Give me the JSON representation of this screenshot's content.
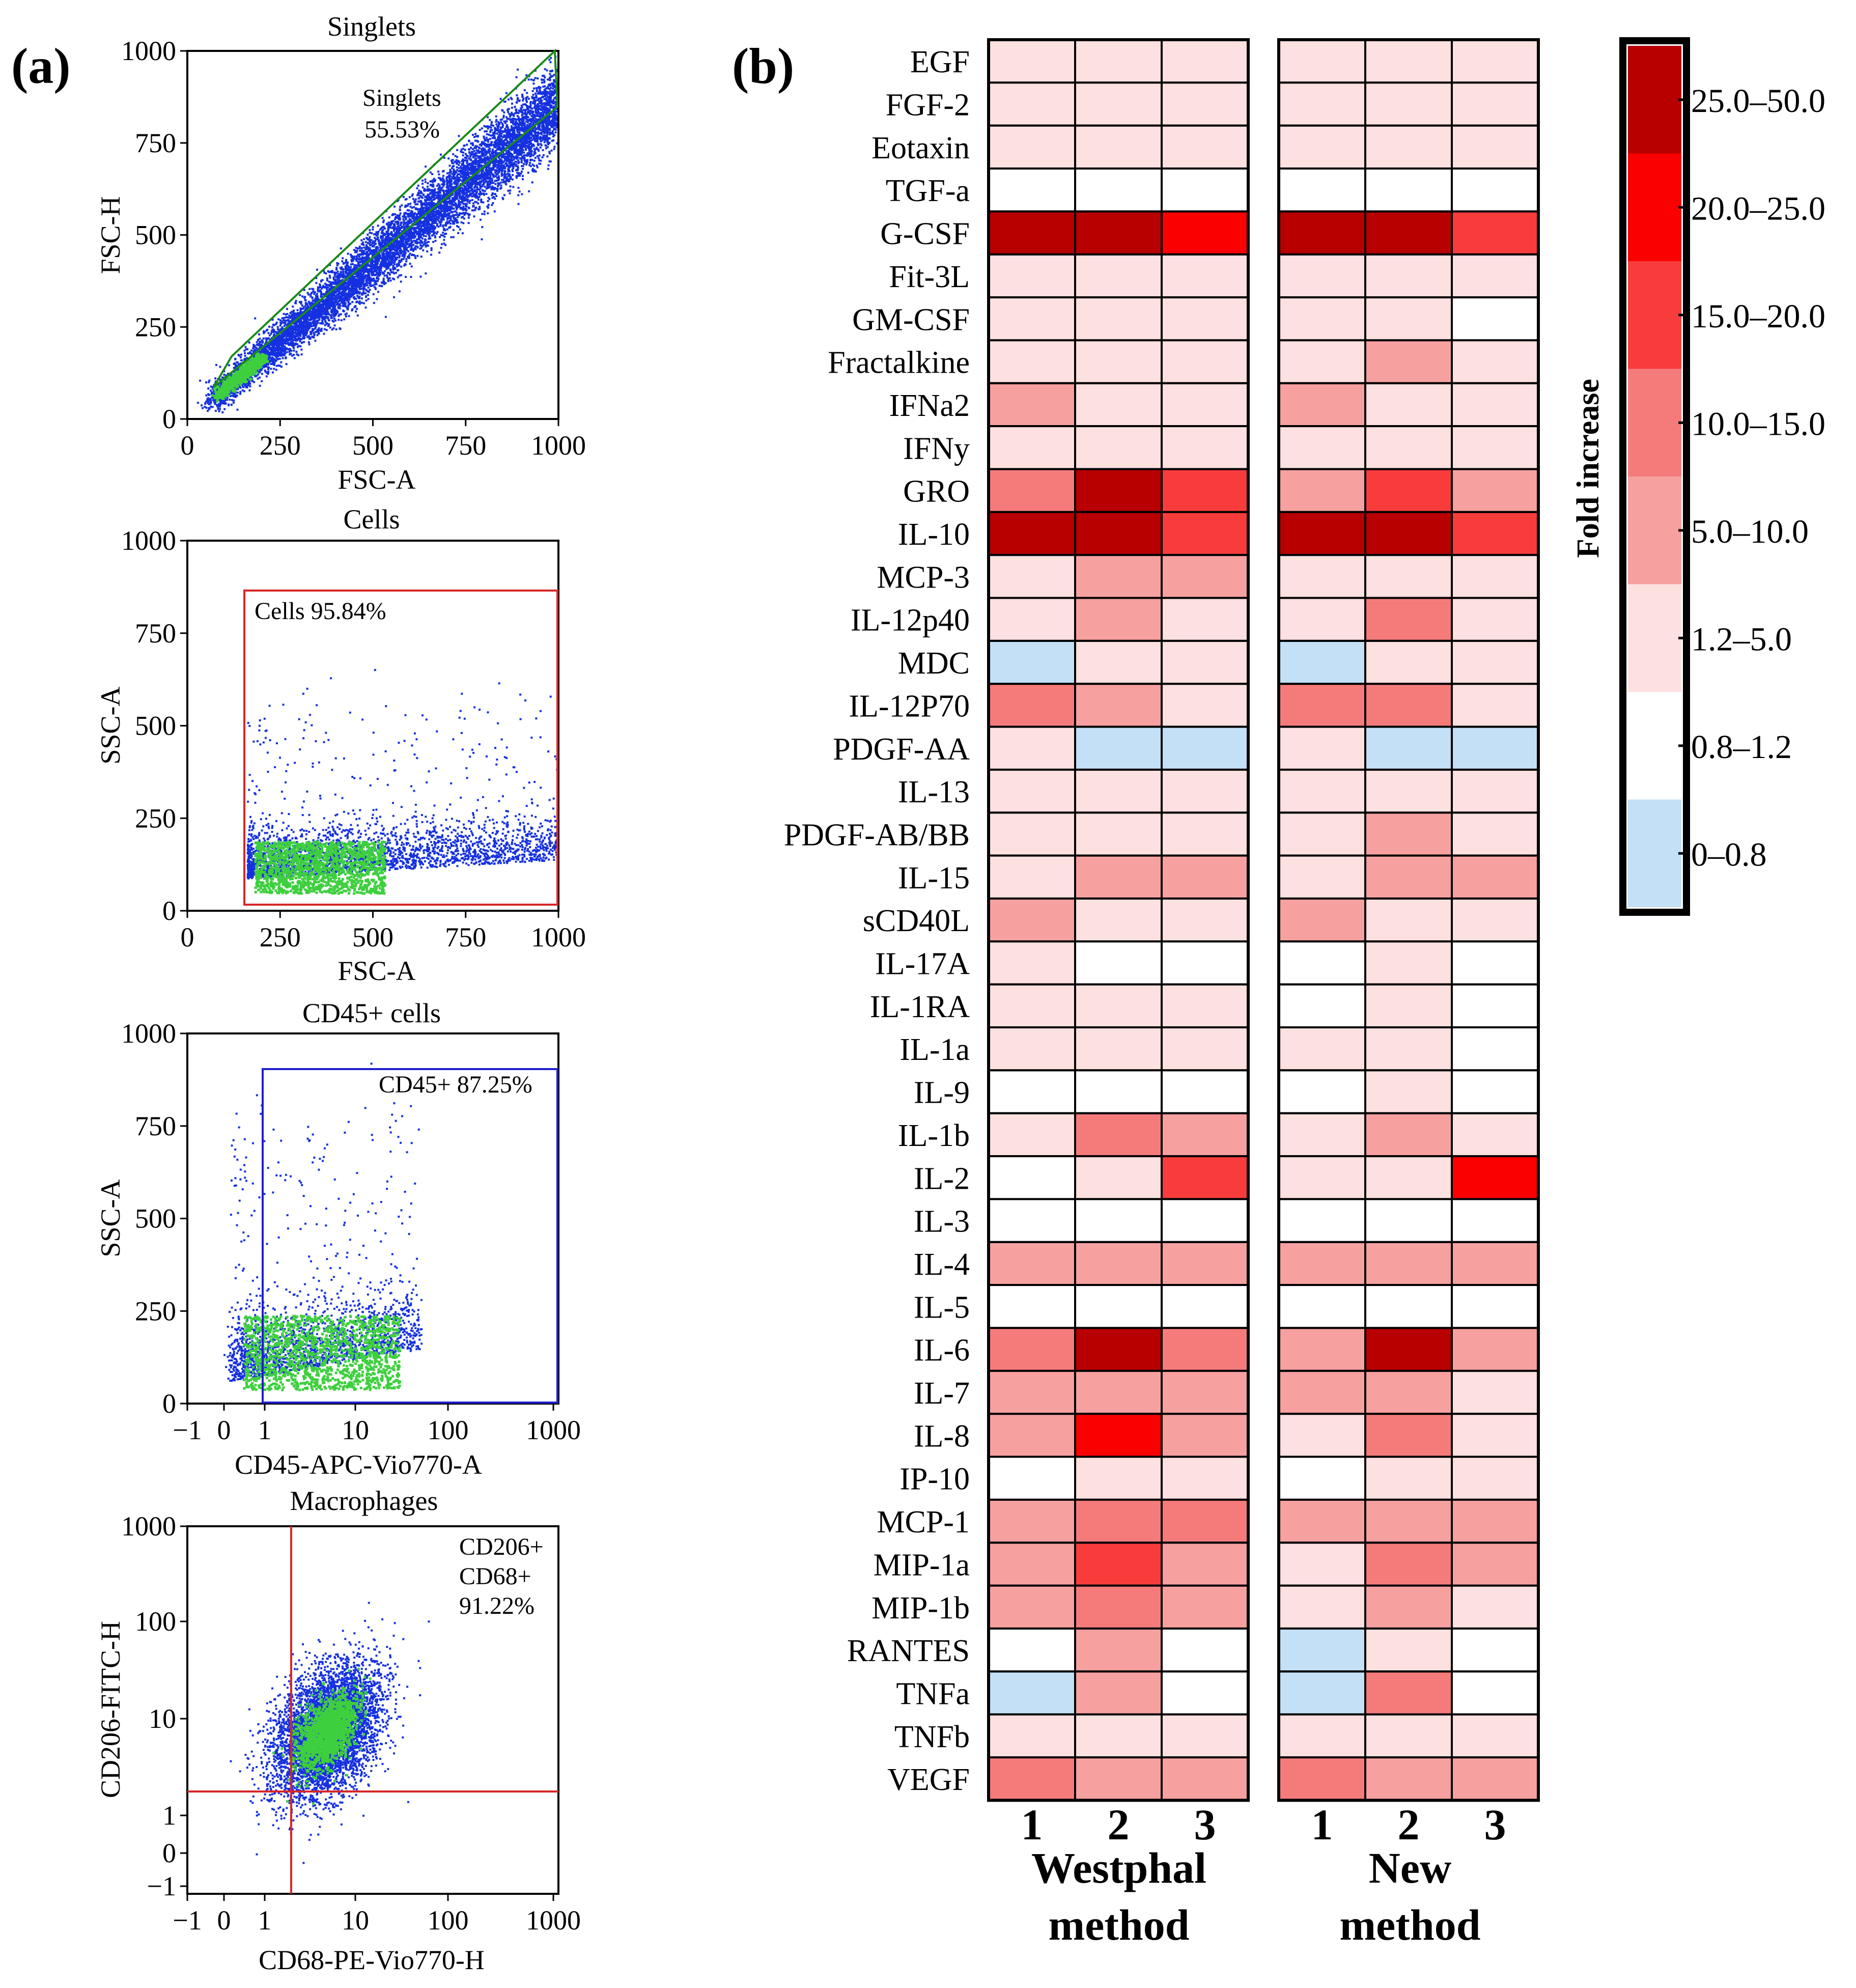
{
  "panel_a_label": "(a)",
  "panel_b_label": "(b)",
  "chart_data": [
    {
      "type": "scatter",
      "title": "Singlets",
      "xlabel": "FSC-A",
      "ylabel": "FSC-H",
      "xticks": [
        "0",
        "250",
        "500",
        "750",
        "1000"
      ],
      "yticks": [
        "0",
        "250",
        "500",
        "750",
        "1000"
      ],
      "xlim": [
        0,
        1000
      ],
      "ylim": [
        0,
        1000
      ],
      "gate": {
        "label_line1": "Singlets",
        "label_line2": "55.53%",
        "color": "#1a8a1a"
      }
    },
    {
      "type": "scatter",
      "title": "Cells",
      "xlabel": "FSC-A",
      "ylabel": "SSC-A",
      "xticks": [
        "0",
        "250",
        "500",
        "750",
        "1000"
      ],
      "yticks": [
        "0",
        "250",
        "500",
        "750",
        "1000"
      ],
      "xlim": [
        0,
        1000
      ],
      "ylim": [
        0,
        1000
      ],
      "gate": {
        "label": "Cells 95.84%",
        "color": "#d62728"
      }
    },
    {
      "type": "scatter",
      "title": "CD45+ cells",
      "xlabel": "CD45-APC-Vio770-A",
      "ylabel": "SSC-A",
      "xticks": [
        "−1",
        "0",
        "1",
        "10",
        "100",
        "1000"
      ],
      "yticks": [
        "0",
        "250",
        "500",
        "750",
        "1000"
      ],
      "ylim": [
        0,
        1000
      ],
      "gate": {
        "label": "CD45+ 87.25%",
        "color": "#1f1fcc"
      }
    },
    {
      "type": "scatter",
      "title": "Macrophages",
      "xlabel": "CD68-PE-Vio770-H",
      "ylabel": "CD206-FITC-H",
      "xticks": [
        "−1",
        "0",
        "1",
        "10",
        "100",
        "1000"
      ],
      "yticks": [
        "−1",
        "0",
        "1",
        "10",
        "100",
        "1000"
      ],
      "gate": {
        "label_line1": "CD206+",
        "label_line2": "CD68+",
        "label_line3": "91.22%",
        "color": "#d62728"
      }
    },
    {
      "type": "heatmap",
      "rows": [
        "EGF",
        "FGF-2",
        "Eotaxin",
        "TGF-a",
        "G-CSF",
        "Fit-3L",
        "GM-CSF",
        "Fractalkine",
        "IFNa2",
        "IFNy",
        "GRO",
        "IL-10",
        "MCP-3",
        "IL-12p40",
        "MDC",
        "IL-12P70",
        "PDGF-AA",
        "IL-13",
        "PDGF-AB/BB",
        "IL-15",
        "sCD40L",
        "IL-17A",
        "IL-1RA",
        "IL-1a",
        "IL-9",
        "IL-1b",
        "IL-2",
        "IL-3",
        "IL-4",
        "IL-5",
        "IL-6",
        "IL-7",
        "IL-8",
        "IP-10",
        "MCP-1",
        "MIP-1a",
        "MIP-1b",
        "RANTES",
        "TNFa",
        "TNFb",
        "VEGF"
      ],
      "groups": [
        {
          "name_line1": "Westphal",
          "name_line2": "method",
          "columns": [
            "1",
            "2",
            "3"
          ]
        },
        {
          "name_line1": "New",
          "name_line2": "method",
          "columns": [
            "1",
            "2",
            "3"
          ]
        }
      ],
      "legend_title": "Fold increase",
      "legend": [
        {
          "label": "25.0–50.0",
          "color": "#b80000"
        },
        {
          "label": "20.0–25.0",
          "color": "#fa0000"
        },
        {
          "label": "15.0–20.0",
          "color": "#f83c3c"
        },
        {
          "label": "10.0–15.0",
          "color": "#f57b7b"
        },
        {
          "label": "5.0–10.0",
          "color": "#f7a0a0"
        },
        {
          "label": "1.2–5.0",
          "color": "#fde0e0"
        },
        {
          "label": "0.8–1.2",
          "color": "#ffffff"
        },
        {
          "label": "0–0.8",
          "color": "#c3e0f7"
        }
      ],
      "values": [
        [
          2,
          2,
          2,
          2,
          2,
          2
        ],
        [
          2,
          2,
          2,
          2,
          2,
          2
        ],
        [
          2,
          2,
          2,
          2,
          2,
          2
        ],
        [
          1,
          1,
          1,
          1,
          1,
          1
        ],
        [
          7,
          7,
          6,
          7,
          7,
          5
        ],
        [
          2,
          2,
          2,
          2,
          2,
          2
        ],
        [
          2,
          2,
          2,
          2,
          2,
          1
        ],
        [
          2,
          2,
          2,
          2,
          3,
          2
        ],
        [
          3,
          2,
          2,
          3,
          2,
          2
        ],
        [
          2,
          2,
          2,
          2,
          2,
          2
        ],
        [
          4,
          7,
          5,
          3,
          5,
          3
        ],
        [
          7,
          7,
          5,
          7,
          7,
          5
        ],
        [
          2,
          3,
          3,
          2,
          2,
          2
        ],
        [
          2,
          3,
          2,
          2,
          4,
          2
        ],
        [
          0,
          2,
          2,
          0,
          2,
          2
        ],
        [
          4,
          3,
          2,
          4,
          4,
          2
        ],
        [
          2,
          0,
          0,
          2,
          0,
          0
        ],
        [
          2,
          2,
          2,
          2,
          2,
          2
        ],
        [
          2,
          2,
          2,
          2,
          3,
          2
        ],
        [
          2,
          3,
          3,
          2,
          3,
          3
        ],
        [
          3,
          2,
          2,
          3,
          2,
          2
        ],
        [
          2,
          1,
          1,
          1,
          2,
          1
        ],
        [
          2,
          2,
          2,
          1,
          2,
          1
        ],
        [
          2,
          2,
          2,
          2,
          2,
          1
        ],
        [
          1,
          1,
          1,
          1,
          2,
          1
        ],
        [
          2,
          4,
          3,
          2,
          3,
          2
        ],
        [
          1,
          2,
          5,
          2,
          2,
          6
        ],
        [
          1,
          1,
          1,
          1,
          1,
          1
        ],
        [
          3,
          3,
          3,
          3,
          3,
          3
        ],
        [
          1,
          1,
          1,
          1,
          1,
          1
        ],
        [
          4,
          7,
          4,
          3,
          7,
          3
        ],
        [
          3,
          3,
          3,
          3,
          3,
          2
        ],
        [
          3,
          6,
          3,
          2,
          4,
          2
        ],
        [
          1,
          2,
          2,
          1,
          2,
          2
        ],
        [
          3,
          4,
          4,
          3,
          3,
          3
        ],
        [
          3,
          5,
          3,
          2,
          4,
          3
        ],
        [
          3,
          4,
          3,
          2,
          3,
          2
        ],
        [
          1,
          3,
          1,
          0,
          2,
          1
        ],
        [
          0,
          3,
          1,
          0,
          4,
          1
        ],
        [
          2,
          2,
          2,
          2,
          2,
          2
        ],
        [
          4,
          3,
          3,
          4,
          3,
          3
        ]
      ]
    }
  ]
}
